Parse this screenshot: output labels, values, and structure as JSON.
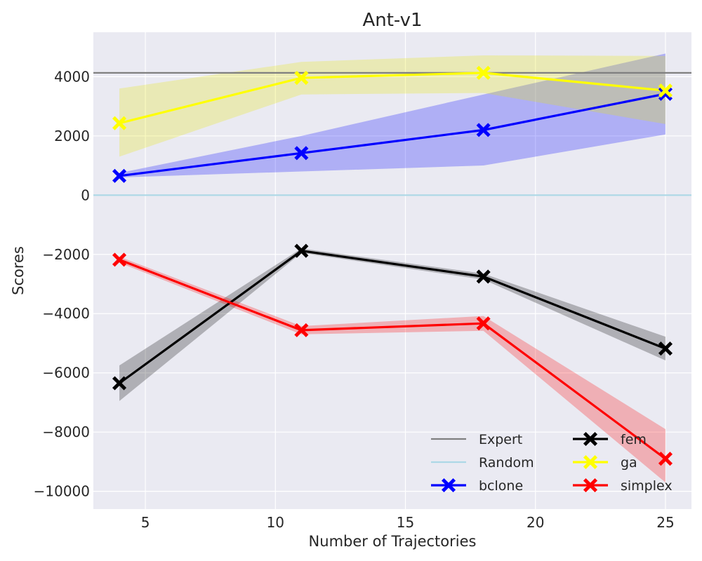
{
  "chart_data": {
    "type": "line",
    "title": "Ant-v1",
    "xlabel": "Number of Trajectories",
    "ylabel": "Scores",
    "x": [
      4,
      11,
      18,
      25
    ],
    "xlim": [
      3,
      26
    ],
    "ylim": [
      -10600,
      5500
    ],
    "xticks": [
      5,
      10,
      15,
      20,
      25
    ],
    "xtick_labels": [
      "5",
      "10",
      "15",
      "20",
      "25"
    ],
    "yticks": [
      4000,
      2000,
      0,
      -2000,
      -4000,
      -6000,
      -8000,
      -10000
    ],
    "ytick_labels": [
      "4000",
      "2000",
      "0",
      "−2000",
      "−4000",
      "−6000",
      "−8000",
      "−10000"
    ],
    "grid": true,
    "background": "#eaeaf2",
    "reference_lines": [
      {
        "name": "Expert",
        "y": 4130,
        "color": "#808080"
      },
      {
        "name": "Random",
        "y": 0,
        "color": "#add8e6"
      }
    ],
    "series": [
      {
        "name": "bclone",
        "color": "#0000ff",
        "band_color": "#0000ff",
        "band_opacity": 0.25,
        "values": [
          650,
          1420,
          2200,
          3420
        ],
        "lower": [
          600,
          800,
          1000,
          2050
        ],
        "upper": [
          750,
          2000,
          3400,
          4780
        ]
      },
      {
        "name": "fem",
        "color": "#000000",
        "band_color": "#000000",
        "band_opacity": 0.25,
        "values": [
          -6350,
          -1880,
          -2750,
          -5180
        ],
        "lower": [
          -6950,
          -1950,
          -2850,
          -5580
        ],
        "upper": [
          -5750,
          -1800,
          -2650,
          -4780
        ]
      },
      {
        "name": "ga",
        "color": "#ffff00",
        "band_color": "#e6e600",
        "band_opacity": 0.25,
        "values": [
          2430,
          3960,
          4130,
          3530
        ],
        "lower": [
          1300,
          3400,
          3450,
          2400
        ],
        "upper": [
          3600,
          4500,
          4720,
          4700
        ]
      },
      {
        "name": "simplex",
        "color": "#ff0000",
        "band_color": "#ff0000",
        "band_opacity": 0.25,
        "values": [
          -2180,
          -4560,
          -4330,
          -8900
        ],
        "lower": [
          -2280,
          -4700,
          -4580,
          -9700
        ],
        "upper": [
          -2080,
          -4420,
          -4080,
          -7900
        ]
      }
    ],
    "legend": {
      "placement": "lower-right",
      "columns": 2,
      "entries": [
        "Expert",
        "Random",
        "bclone",
        "fem",
        "ga",
        "simplex"
      ]
    }
  }
}
